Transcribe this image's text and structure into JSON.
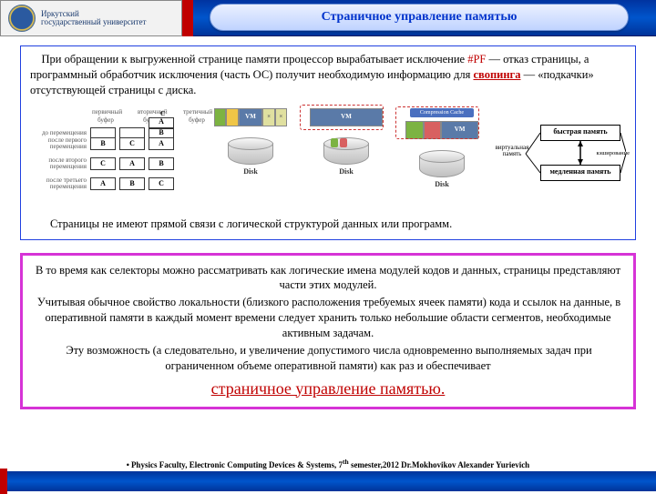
{
  "header": {
    "university_line1": "Иркутский",
    "university_line2": "государственный университет",
    "title": "Страничное управление памятью",
    "accent_color": "#c00000",
    "bar_color": "#003399"
  },
  "box1": {
    "para_before_pf": "При обращении к выгруженной странице памяти процессор вырабатывает исключение ",
    "pf": "#PF",
    "para_mid": " — отказ страницы, а программный обработчик исключения (часть ОС) получит необходимую информацию для ",
    "swap_word": "свопинга",
    "para_after": " — «подкачки» отсутствующей страницы с диска.",
    "after_diagram": "Страницы не имеют прямой связи с логической структурой данных или программ.",
    "border_color": "#2040e0"
  },
  "diagram_left": {
    "col_labels": [
      "первичный буфер",
      "вторичный буфер",
      "третичный буфер"
    ],
    "row_labels": [
      "до перемещения",
      "после первого перемещения",
      "после второго перемещения",
      "после третьего перемещения"
    ],
    "rows": [
      [
        " ",
        " ",
        [
          "A",
          "B",
          "C"
        ]
      ],
      [
        "B",
        "C",
        "A"
      ],
      [
        "C",
        "A",
        "B"
      ],
      [
        "A",
        "B",
        "C"
      ]
    ],
    "stack_label": "C"
  },
  "vm_blocks": [
    {
      "segments": [
        {
          "c": "g"
        },
        {
          "c": "y"
        },
        {
          "c": "vm",
          "label": "VM"
        },
        {
          "c": "x",
          "label": "×"
        },
        {
          "c": "x",
          "label": "×"
        }
      ],
      "disk_label": "Disk",
      "disk_slices": []
    },
    {
      "segments": [
        {
          "c": "vm",
          "label": "VM"
        }
      ],
      "disk_label": "Disk",
      "disk_slices": [
        "#7cb342",
        "#d86060"
      ],
      "dashed": true
    },
    {
      "compression_label": "Compression Cache",
      "segments": [
        {
          "c": "g"
        },
        {
          "c": "r"
        },
        {
          "c": "vm",
          "label": "VM"
        }
      ],
      "disk_label": "Disk",
      "disk_slices": [],
      "dashed": true
    }
  ],
  "diagram_right": {
    "fast_label": "быстрая память",
    "slow_label": "медленная память",
    "virt_label": "виртуальная память",
    "cache_label": "кэширование"
  },
  "box2": {
    "p1": "В то время как селекторы можно рассматривать как логические имена модулей кодов и данных, страницы представляют части этих модулей.",
    "p2": "Учитывая обычное свойство локальности (близкого расположения требуемых ячеек памяти) кода и ссылок на данные, в оперативной памяти в каждый момент времени следует хранить только небольшие области сегментов, необходимые активным задачам.",
    "p3": "Эту возможность (а следовательно, и увеличение допустимого числа одновременно выполняемых задач при ограниченном объеме оперативной памяти) как раз и обеспечивает",
    "bigred": "страничное управление памятью.",
    "border_color": "#d633d6"
  },
  "footer": {
    "text_before_sup": "Physics Faculty, Electronic Computing Devices & Systems, 7",
    "sup": "th",
    "text_after_sup": " semester,2012 Dr.Mokhovikov Alexander Yurievich"
  }
}
